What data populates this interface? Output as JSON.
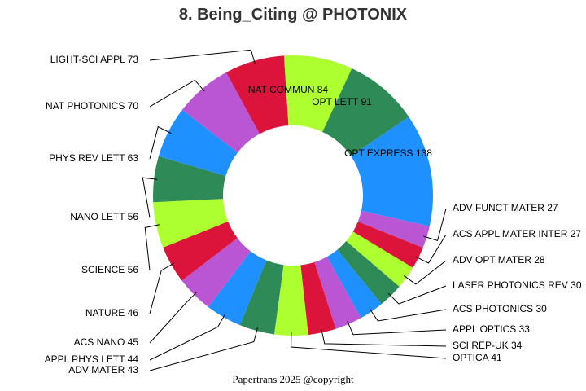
{
  "chart_data": {
    "type": "pie",
    "donut": true,
    "title": "8. Being_Citing @ PHOTONIX",
    "footer": "Papertrans 2025 @copyright",
    "slices": [
      {
        "label": "OPT EXPRESS",
        "value": 138,
        "color": "#1E90FF"
      },
      {
        "label": "ADV FUNCT MATER",
        "value": 27,
        "color": "#BA55D3"
      },
      {
        "label": "ACS APPL MATER INTER",
        "value": 27,
        "color": "#DC143C"
      },
      {
        "label": "ADV OPT MATER",
        "value": 28,
        "color": "#ADFF2F"
      },
      {
        "label": "LASER PHOTONICS REV",
        "value": 30,
        "color": "#2E8B57"
      },
      {
        "label": "ACS PHOTONICS",
        "value": 30,
        "color": "#1E90FF"
      },
      {
        "label": "APPL OPTICS",
        "value": 33,
        "color": "#BA55D3"
      },
      {
        "label": "SCI REP-UK",
        "value": 34,
        "color": "#DC143C"
      },
      {
        "label": "OPTICA",
        "value": 41,
        "color": "#ADFF2F"
      },
      {
        "label": "ADV MATER",
        "value": 43,
        "color": "#2E8B57"
      },
      {
        "label": "APPL PHYS LETT",
        "value": 44,
        "color": "#1E90FF"
      },
      {
        "label": "ACS NANO",
        "value": 45,
        "color": "#BA55D3"
      },
      {
        "label": "NATURE",
        "value": 46,
        "color": "#DC143C"
      },
      {
        "label": "SCIENCE",
        "value": 56,
        "color": "#ADFF2F"
      },
      {
        "label": "NANO LETT",
        "value": 56,
        "color": "#2E8B57"
      },
      {
        "label": "PHYS REV LETT",
        "value": 63,
        "color": "#1E90FF"
      },
      {
        "label": "NAT PHOTONICS",
        "value": 70,
        "color": "#BA55D3"
      },
      {
        "label": "LIGHT-SCI APPL",
        "value": 73,
        "color": "#DC143C"
      },
      {
        "label": "NAT COMMUN",
        "value": 84,
        "color": "#ADFF2F"
      },
      {
        "label": "OPT LETT",
        "value": 91,
        "color": "#2E8B57"
      }
    ]
  }
}
